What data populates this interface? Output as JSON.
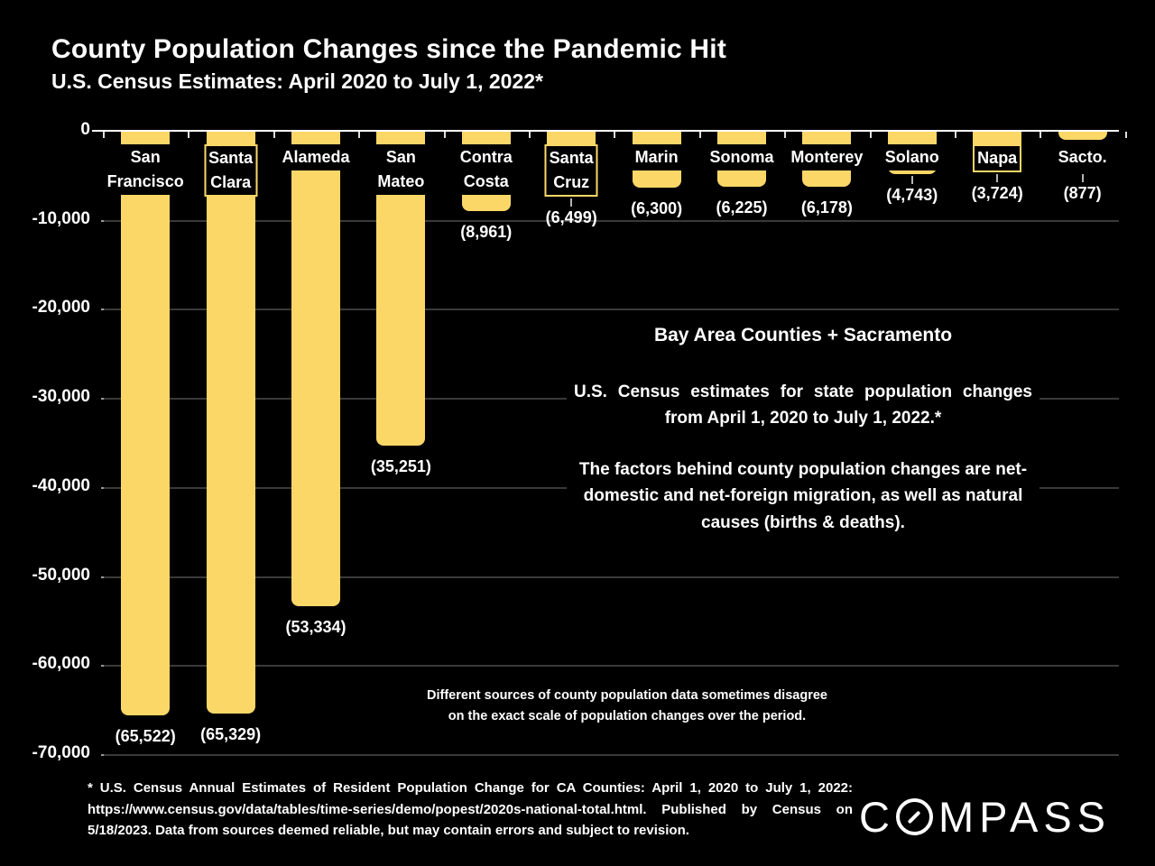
{
  "header": {
    "title": "County Population Changes since the Pandemic Hit",
    "subtitle": "U.S. Census Estimates: April 2020 to July 1, 2022*"
  },
  "chart_data": {
    "type": "bar",
    "title": "County Population Changes since the Pandemic Hit",
    "categories": [
      "San Francisco",
      "Santa Clara",
      "Alameda",
      "San Mateo",
      "Contra Costa",
      "Santa Cruz",
      "Marin",
      "Sonoma",
      "Monterey",
      "Solano",
      "Napa",
      "Sacto."
    ],
    "category_label_lines": [
      [
        "San",
        "Francisco"
      ],
      [
        "Santa",
        "Clara"
      ],
      [
        "Alameda"
      ],
      [
        "San",
        "Mateo"
      ],
      [
        "Contra",
        "Costa"
      ],
      [
        "Santa",
        "Cruz"
      ],
      [
        "Marin"
      ],
      [
        "Sonoma"
      ],
      [
        "Monterey"
      ],
      [
        "Solano"
      ],
      [
        "Napa"
      ],
      [
        "Sacto."
      ]
    ],
    "values": [
      -65522,
      -65329,
      -53334,
      -35251,
      -8961,
      -6499,
      -6300,
      -6225,
      -6178,
      -4743,
      -3724,
      -877
    ],
    "value_labels": [
      "(65,522)",
      "(65,329)",
      "(53,334)",
      "(35,251)",
      "(8,961)",
      "(6,499)",
      "(6,300)",
      "(6,225)",
      "(6,178)",
      "(4,743)",
      "(3,724)",
      "(877)"
    ],
    "label_box_bordered": [
      false,
      true,
      false,
      false,
      false,
      true,
      false,
      false,
      false,
      false,
      true,
      false
    ],
    "leader_lines": [
      false,
      false,
      false,
      false,
      false,
      true,
      false,
      false,
      false,
      true,
      true,
      true
    ],
    "xlabel": "",
    "ylabel": "",
    "ylim": [
      -70000,
      0
    ],
    "ytick_labels": [
      "0",
      "-10,000",
      "-20,000",
      "-30,000",
      "-40,000",
      "-50,000",
      "-60,000",
      "-70,000"
    ],
    "grid": true,
    "legend": "none",
    "bar_color": "#FBD768",
    "grid_color": "#3a3a3a",
    "axis_color": "#ffffff"
  },
  "panel": {
    "title": "Bay Area Counties + Sacramento",
    "para1": "U.S. Census estimates for state population changes from April 1, 2020 to July 1, 2022.*",
    "para2": "The factors behind county population changes are net-domestic and net-foreign migration, as well as natural causes (births & deaths)."
  },
  "note": {
    "line1": "Different sources of county population data sometimes disagree",
    "line2": "on the exact scale of population changes over the period."
  },
  "footer": {
    "disclaimer": "* U.S. Census Annual Estimates of Resident Population Change for CA Counties: April 1, 2020 to July 1, 2022: https://www.census.gov/data/tables/time-series/demo/popest/2020s-national-total.html.  Published by Census on 5/18/2023.  Data from sources deemed reliable, but may contain errors and subject to revision.",
    "logo_prefix": "C",
    "logo_suffix": "MPASS",
    "logo_o_icon": "compass-needle-slashed-o"
  },
  "colors": {
    "background": "#000000",
    "bar": "#FBD768",
    "text": "#ffffff",
    "grid": "#3a3a3a"
  }
}
